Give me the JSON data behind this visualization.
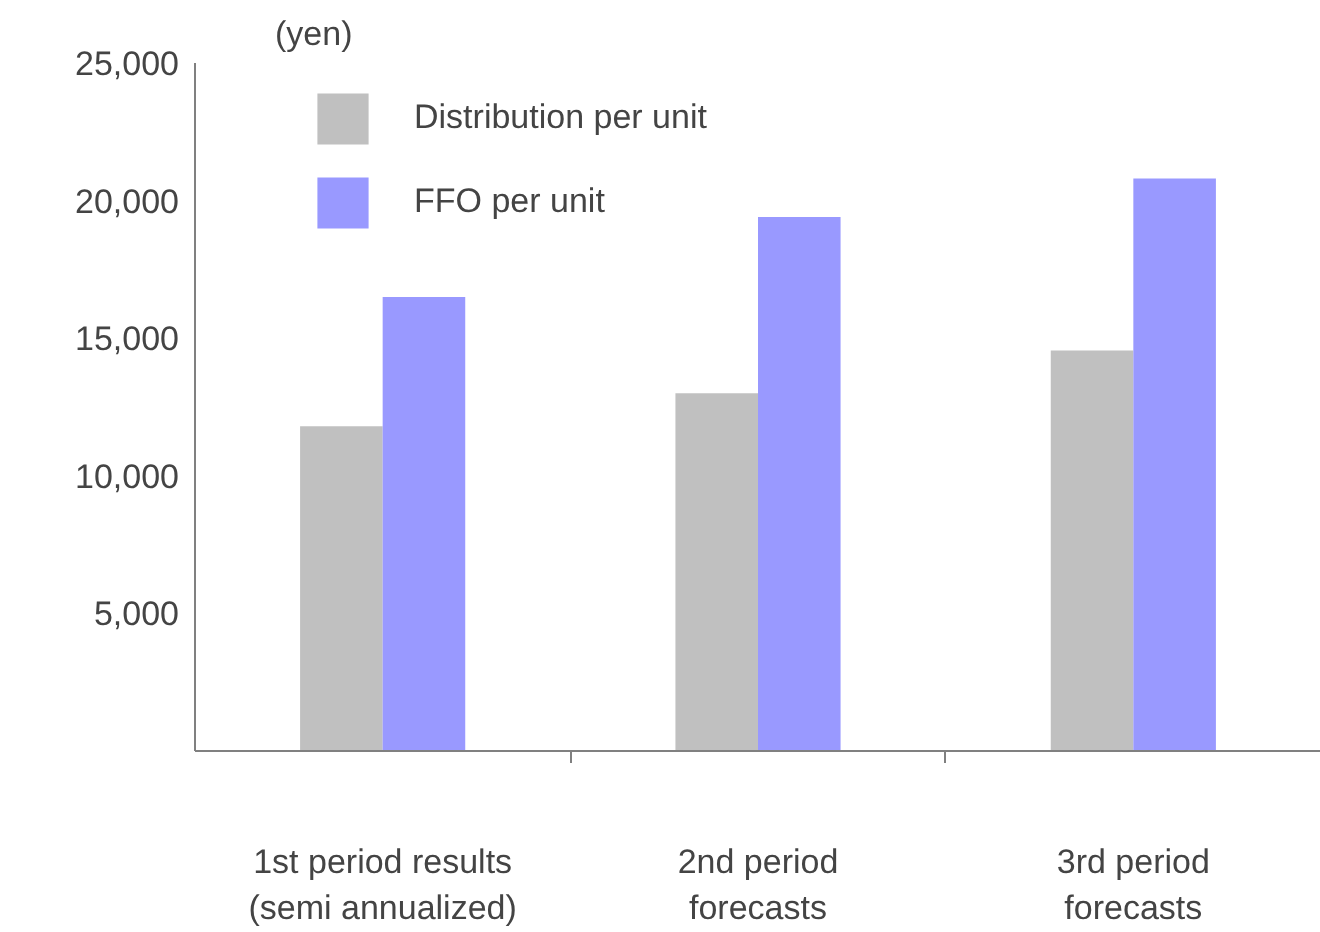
{
  "chart_data": {
    "type": "bar",
    "ylabel": "(yen)",
    "categories": [
      "1st period results\n(semi annualized)",
      "2nd period\nforecasts",
      "3rd period\nforecasts"
    ],
    "series": [
      {
        "name": "Distribution per unit",
        "color": "#c0c0c0",
        "values": [
          11800,
          13000,
          14550
        ]
      },
      {
        "name": "FFO per unit",
        "color": "#9999ff",
        "values": [
          16500,
          19400,
          20800
        ]
      }
    ],
    "ylim": [
      0,
      25000
    ],
    "yticks": [
      {
        "value": 5000,
        "label": "5,000"
      },
      {
        "value": 10000,
        "label": "10,000"
      },
      {
        "value": 15000,
        "label": "15,000"
      },
      {
        "value": 20000,
        "label": "20,000"
      },
      {
        "value": 25000,
        "label": "25,000"
      }
    ],
    "grid": false,
    "legend": "top left"
  }
}
